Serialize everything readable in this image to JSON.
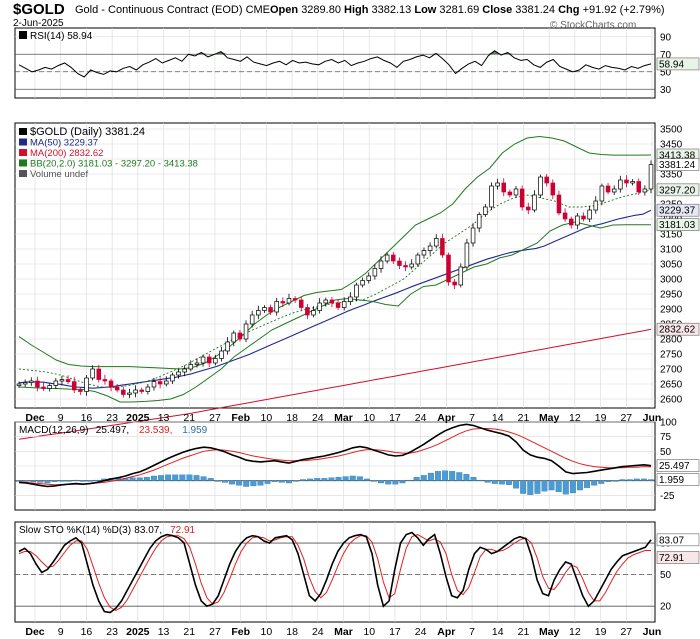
{
  "header": {
    "symbol": "$GOLD",
    "description": "Gold - Continuous Contract (EOD)",
    "exchange": "CME",
    "date": "2-Jun-2025",
    "open_label": "Open",
    "open": "3289.80",
    "high_label": "High",
    "high": "3382.13",
    "low_label": "Low",
    "low": "3281.69",
    "close_label": "Close",
    "close": "3381.24",
    "chg_label": "Chg",
    "chg": "+91.92 (+2.79%)",
    "brand": "© StockCharts.com"
  },
  "colors": {
    "up_candle": "#ffffff",
    "down_candle": "#cc0033",
    "ma50": "#1f2a8c",
    "ma200": "#d0102c",
    "bb": "#1f7a1f",
    "rsi": "#000000",
    "macd": "#000000",
    "signal": "#e02020",
    "histogram": "#4a9cd6",
    "stoch_k": "#000000",
    "stoch_d": "#e02020",
    "grid": "#d8d8d8"
  },
  "chart_data": [
    {
      "type": "line",
      "panel": "rsi",
      "legend": "RSI(14) 58.94",
      "ylim": [
        20,
        100
      ],
      "yticks": [
        90,
        70,
        50,
        30
      ],
      "levels": [
        70,
        50,
        30
      ],
      "last_label": "58.94",
      "values": [
        58,
        54,
        50,
        52,
        55,
        53,
        57,
        60,
        55,
        48,
        44,
        52,
        49,
        47,
        51,
        50,
        54,
        56,
        52,
        58,
        61,
        65,
        60,
        63,
        66,
        62,
        70,
        68,
        72,
        67,
        70,
        73,
        66,
        64,
        62,
        67,
        61,
        59,
        57,
        60,
        62,
        58,
        63,
        60,
        61,
        59,
        58,
        62,
        64,
        60,
        63,
        57,
        60,
        62,
        65,
        67,
        63,
        60,
        55,
        62,
        64,
        67,
        69,
        66,
        71,
        65,
        58,
        48,
        54,
        59,
        62,
        57,
        68,
        74,
        69,
        72,
        66,
        63,
        64,
        58,
        55,
        61,
        64,
        56,
        53,
        50,
        52,
        58,
        55,
        53,
        57,
        55,
        54,
        52,
        56,
        54,
        57,
        58.94
      ]
    },
    {
      "type": "candlestick",
      "panel": "price",
      "legend": [
        {
          "text": "$GOLD (Daily) 3381.24",
          "color": "#000000"
        },
        {
          "text": "MA(50) 3229.37",
          "color": "#1f2a8c"
        },
        {
          "text": "MA(200) 2832.62",
          "color": "#d0102c"
        },
        {
          "text": "BB(20,2.0) 3181.03 - 3297.20 - 3413.38",
          "color": "#1f7a1f"
        },
        {
          "text": "Volume undef",
          "color": "#555555"
        }
      ],
      "ylim": [
        2570,
        3520
      ],
      "yticks": [
        3500,
        3450,
        3400,
        3350,
        3300,
        3250,
        3200,
        3150,
        3100,
        3050,
        3000,
        2950,
        2900,
        2850,
        2800,
        2750,
        2700,
        2650,
        2600
      ],
      "value_tags": [
        {
          "value": 3413.38,
          "text": "3413.38"
        },
        {
          "value": 3381.24,
          "text": "3381.24"
        },
        {
          "value": 3297.2,
          "text": "3297.20"
        },
        {
          "value": 3229.37,
          "text": "3229.37"
        },
        {
          "value": 3181.03,
          "text": "3181.03"
        },
        {
          "value": 2832.62,
          "text": "2832.62"
        }
      ],
      "close": [
        2650,
        2655,
        2660,
        2640,
        2635,
        2645,
        2660,
        2665,
        2658,
        2630,
        2625,
        2670,
        2700,
        2665,
        2660,
        2640,
        2630,
        2615,
        2620,
        2630,
        2625,
        2640,
        2658,
        2650,
        2660,
        2680,
        2690,
        2700,
        2715,
        2720,
        2740,
        2720,
        2735,
        2760,
        2790,
        2820,
        2800,
        2850,
        2880,
        2895,
        2905,
        2890,
        2925,
        2920,
        2935,
        2930,
        2905,
        2880,
        2895,
        2920,
        2930,
        2920,
        2905,
        2925,
        2940,
        2980,
        2995,
        3010,
        3035,
        3060,
        3080,
        3060,
        3045,
        3040,
        3050,
        3080,
        3095,
        3110,
        3135,
        3080,
        2990,
        2980,
        3040,
        3120,
        3170,
        3215,
        3240,
        3310,
        3320,
        3290,
        3280,
        3300,
        3240,
        3230,
        3280,
        3340,
        3320,
        3280,
        3220,
        3200,
        3180,
        3210,
        3200,
        3230,
        3260,
        3310,
        3290,
        3300,
        3330,
        3320,
        3325,
        3290,
        3300,
        3381.24
      ],
      "ma50": [
        2654,
        2657,
        2657,
        2656,
        2652,
        2649,
        2644,
        2640,
        2638,
        2636,
        2638,
        2640,
        2644,
        2648,
        2652,
        2656,
        2660,
        2664,
        2668,
        2672,
        2678,
        2684,
        2692,
        2700,
        2708,
        2718,
        2728,
        2738,
        2748,
        2760,
        2772,
        2784,
        2796,
        2808,
        2820,
        2832,
        2844,
        2856,
        2868,
        2880,
        2892,
        2903,
        2913,
        2924,
        2934,
        2944,
        2954,
        2965,
        2976,
        2986,
        2996,
        3006,
        3016,
        3026,
        3036,
        3046,
        3056,
        3066,
        3074,
        3082,
        3089,
        3094,
        3098,
        3102,
        3110,
        3122,
        3134,
        3146,
        3158,
        3170,
        3178,
        3184,
        3192,
        3200,
        3206,
        3212,
        3216,
        3229.37
      ],
      "ma200": [
        2466,
        2471,
        2476,
        2481,
        2485,
        2490,
        2495,
        2500,
        2505,
        2510,
        2515,
        2520,
        2525,
        2530,
        2535,
        2540,
        2545,
        2550,
        2556,
        2562,
        2568,
        2574,
        2580,
        2586,
        2592,
        2598,
        2604,
        2610,
        2616,
        2622,
        2628,
        2634,
        2640,
        2646,
        2652,
        2658,
        2664,
        2670,
        2676,
        2682,
        2688,
        2694,
        2700,
        2706,
        2712,
        2718,
        2724,
        2730,
        2736,
        2742,
        2748,
        2754,
        2760,
        2766,
        2772,
        2778,
        2784,
        2790,
        2796,
        2802,
        2808,
        2814,
        2820,
        2826,
        2832.62
      ],
      "bb_upper": [
        2808,
        2780,
        2755,
        2730,
        2715,
        2710,
        2708,
        2708,
        2708,
        2708,
        2706,
        2704,
        2702,
        2700,
        2705,
        2720,
        2745,
        2775,
        2810,
        2850,
        2880,
        2905,
        2925,
        2945,
        2955,
        2960,
        2965,
        2990,
        3020,
        3060,
        3100,
        3140,
        3180,
        3200,
        3220,
        3250,
        3300,
        3340,
        3370,
        3420,
        3450,
        3470,
        3475,
        3470,
        3460,
        3440,
        3420,
        3415,
        3413,
        3413,
        3413,
        3413.38
      ],
      "bb_lower": [
        2640,
        2638,
        2636,
        2635,
        2633,
        2632,
        2625,
        2610,
        2590,
        2590,
        2592,
        2595,
        2600,
        2615,
        2640,
        2670,
        2700,
        2740,
        2770,
        2800,
        2830,
        2850,
        2870,
        2890,
        2910,
        2930,
        2935,
        2930,
        2925,
        2915,
        2910,
        2950,
        2975,
        2980,
        3000,
        3020,
        3040,
        3050,
        3070,
        3080,
        3100,
        3120,
        3160,
        3180,
        3190,
        3180,
        3170,
        3180,
        3181,
        3181,
        3181.03
      ],
      "bb_mid": [
        2700,
        2695,
        2690,
        2680,
        2665,
        2650,
        2640,
        2638,
        2645,
        2655,
        2670,
        2690,
        2710,
        2735,
        2760,
        2785,
        2810,
        2830,
        2850,
        2870,
        2888,
        2900,
        2910,
        2920,
        2925,
        2930,
        2950,
        2975,
        3000,
        3040,
        3080,
        3120,
        3150,
        3180,
        3220,
        3250,
        3270,
        3280,
        3270,
        3260,
        3240,
        3240,
        3245,
        3260,
        3275,
        3285,
        3297.2
      ]
    },
    {
      "type": "line",
      "panel": "macd",
      "legend": "MACD(12,26,9) 25.497, 23.539, 1.959",
      "legend_parts": [
        "MACD(12,26,9)",
        "25.497,",
        "23.539,",
        "1.959"
      ],
      "ylim": [
        -50,
        100
      ],
      "yticks": [
        100,
        75,
        50,
        25,
        0,
        -25
      ],
      "value_tags": [
        {
          "value": 25.497,
          "text": "25.497"
        },
        {
          "value": 1.959,
          "text": "1.959"
        }
      ],
      "macd": [
        -3,
        -4,
        -6,
        -8,
        -10,
        -9,
        -7,
        -6,
        -5,
        -6,
        -5,
        -3,
        0,
        3,
        5,
        8,
        12,
        15,
        20,
        26,
        32,
        38,
        43,
        48,
        52,
        55,
        57,
        56,
        53,
        49,
        44,
        40,
        35,
        33,
        32,
        33,
        34,
        32,
        30,
        33,
        36,
        38,
        40,
        42,
        45,
        48,
        52,
        56,
        58,
        56,
        52,
        48,
        44,
        42,
        43,
        48,
        55,
        62,
        70,
        78,
        85,
        90,
        94,
        96,
        94,
        90,
        86,
        83,
        80,
        76,
        66,
        52,
        44,
        40,
        38,
        34,
        25,
        15,
        12,
        13,
        14,
        16,
        18,
        20,
        22,
        24,
        25,
        26,
        27,
        25.497
      ],
      "signal": [
        -2,
        -3,
        -4,
        -5,
        -6,
        -7,
        -7,
        -6,
        -6,
        -6,
        -5,
        -4,
        -3,
        -1,
        1,
        4,
        7,
        10,
        14,
        18,
        23,
        28,
        33,
        38,
        42,
        46,
        50,
        52,
        53,
        52,
        50,
        48,
        45,
        42,
        40,
        38,
        36,
        35,
        34,
        34,
        34,
        35,
        36,
        38,
        40,
        42,
        45,
        48,
        51,
        53,
        53,
        52,
        50,
        48,
        47,
        47,
        49,
        53,
        57,
        62,
        68,
        74,
        80,
        85,
        88,
        89,
        89,
        88,
        86,
        83,
        79,
        74,
        68,
        62,
        56,
        50,
        44,
        38,
        33,
        29,
        26,
        24,
        23,
        22,
        22,
        22,
        23,
        23,
        24,
        23.539
      ],
      "histogram": [
        -1,
        -1,
        -2,
        -3,
        -4,
        -2,
        0,
        0,
        1,
        0,
        0,
        1,
        3,
        4,
        4,
        4,
        5,
        5,
        6,
        8,
        9,
        10,
        10,
        10,
        10,
        9,
        7,
        4,
        0,
        -3,
        -6,
        -8,
        -10,
        -9,
        -8,
        -5,
        -2,
        -3,
        -4,
        -1,
        2,
        3,
        4,
        4,
        5,
        6,
        7,
        8,
        7,
        3,
        -1,
        -4,
        -6,
        -6,
        -4,
        1,
        6,
        9,
        13,
        16,
        17,
        16,
        14,
        11,
        6,
        1,
        -3,
        -5,
        -6,
        -7,
        -13,
        -22,
        -24,
        -22,
        -18,
        -16,
        -19,
        -23,
        -21,
        -16,
        -12,
        -8,
        -5,
        -2,
        0,
        2,
        2,
        3,
        3,
        1.959
      ]
    },
    {
      "type": "line",
      "panel": "stoch",
      "legend": "Slow STO %K(14) %D(3) 83.07, 72.91",
      "legend_parts": [
        "Slow STO %K(14) %D(3)",
        "83.07,",
        "72.91"
      ],
      "ylim": [
        5,
        100
      ],
      "yticks": [
        80,
        50,
        20
      ],
      "levels": [
        80,
        50,
        20
      ],
      "value_tags": [
        {
          "value": 83.07,
          "text": "83.07"
        },
        {
          "value": 72.91,
          "text": "72.91"
        }
      ],
      "k": [
        72,
        75,
        70,
        60,
        52,
        55,
        62,
        70,
        78,
        82,
        85,
        80,
        60,
        40,
        25,
        15,
        14,
        18,
        25,
        35,
        45,
        55,
        65,
        75,
        82,
        86,
        88,
        87,
        85,
        80,
        60,
        40,
        25,
        20,
        22,
        30,
        45,
        60,
        72,
        80,
        85,
        87,
        86,
        82,
        80,
        85,
        86,
        87,
        83,
        70,
        50,
        30,
        25,
        32,
        45,
        60,
        72,
        80,
        85,
        87,
        88,
        86,
        70,
        40,
        20,
        25,
        55,
        80,
        88,
        90,
        85,
        78,
        84,
        88,
        70,
        48,
        30,
        28,
        35,
        55,
        70,
        76,
        74,
        70,
        72,
        76,
        80,
        84,
        86,
        84,
        68,
        45,
        32,
        30,
        45,
        55,
        62,
        60,
        45,
        30,
        20,
        25,
        35,
        45,
        55,
        62,
        68,
        70,
        72,
        74,
        76,
        83.07
      ],
      "d": [
        70,
        72,
        72,
        68,
        62,
        57,
        58,
        64,
        71,
        78,
        82,
        82,
        74,
        58,
        42,
        28,
        19,
        16,
        19,
        26,
        36,
        46,
        56,
        66,
        75,
        82,
        86,
        87,
        87,
        84,
        76,
        60,
        42,
        28,
        22,
        24,
        33,
        46,
        60,
        72,
        80,
        85,
        86,
        85,
        82,
        83,
        85,
        86,
        86,
        78,
        65,
        47,
        34,
        28,
        33,
        45,
        58,
        70,
        79,
        84,
        87,
        87,
        81,
        65,
        43,
        28,
        32,
        55,
        75,
        86,
        88,
        85,
        82,
        84,
        81,
        70,
        50,
        35,
        31,
        38,
        52,
        67,
        74,
        74,
        72,
        73,
        76,
        80,
        83,
        85,
        80,
        66,
        48,
        37,
        36,
        43,
        52,
        59,
        57,
        46,
        33,
        25,
        25,
        33,
        43,
        53,
        60,
        66,
        69,
        71,
        73,
        72.91
      ]
    }
  ],
  "x_axis": {
    "ticks": [
      "Dec",
      "9",
      "16",
      "23",
      "2025",
      "13",
      "21",
      "27",
      "Feb",
      "10",
      "18",
      "24",
      "Mar",
      "10",
      "17",
      "24",
      "Apr",
      "7",
      "14",
      "21",
      "May",
      "12",
      "19",
      "27",
      "Jun"
    ],
    "bold": [
      "Dec",
      "2025",
      "Feb",
      "Mar",
      "Apr",
      "May",
      "Jun"
    ]
  }
}
